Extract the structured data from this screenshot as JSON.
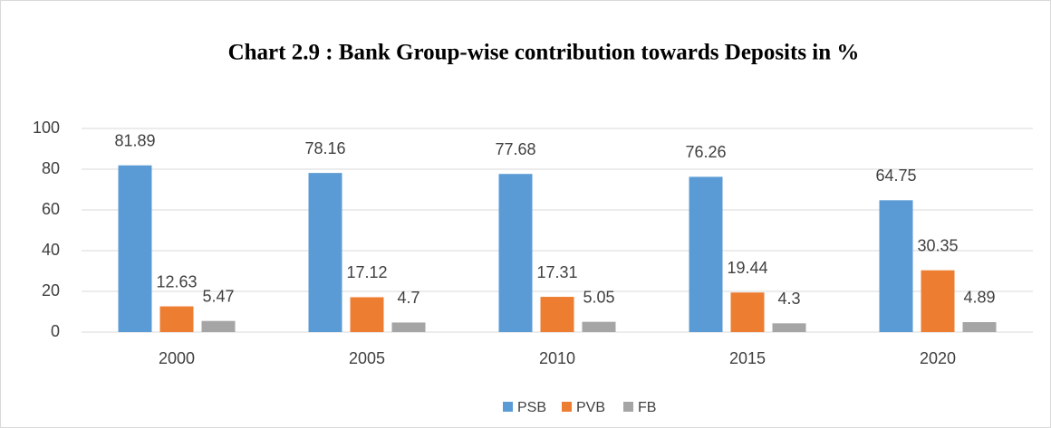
{
  "chart_data": {
    "type": "bar",
    "title": "Chart 2.9 : Bank Group-wise contribution towards Deposits in %",
    "categories": [
      "2000",
      "2005",
      "2010",
      "2015",
      "2020"
    ],
    "series": [
      {
        "name": "PSB",
        "color": "#5b9bd5",
        "values": [
          81.89,
          78.16,
          77.68,
          76.26,
          64.75
        ]
      },
      {
        "name": "PVB",
        "color": "#ed7d31",
        "values": [
          12.63,
          17.12,
          17.31,
          19.44,
          30.35
        ]
      },
      {
        "name": "FB",
        "color": "#a5a5a5",
        "values": [
          5.47,
          4.7,
          5.05,
          4.3,
          4.89
        ]
      }
    ],
    "ylim": [
      0,
      100
    ],
    "yticks": [
      0,
      20,
      40,
      60,
      80,
      100
    ],
    "grid": true,
    "legend": "bottom"
  }
}
